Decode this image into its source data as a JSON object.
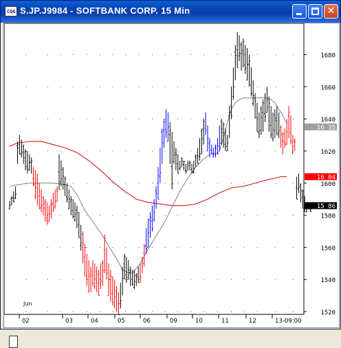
{
  "window": {
    "title": "S.JP.J9984 - SOFTBANK CORP. 15 Min",
    "icon_text": "CQG",
    "icon": "cqg-app-icon",
    "minimize_icon": "minimize-icon",
    "maximize_icon": "maximize-icon",
    "close_icon": "close-icon",
    "close_glyph": "✕"
  },
  "chart_data": {
    "type": "ohlc-bar",
    "month_label": "Jun",
    "x_tick_labels": [
      "02",
      "03",
      "04",
      "05",
      "06",
      "09",
      "10",
      "11",
      "12",
      "13-09:00"
    ],
    "ylim": [
      1516,
      1696
    ],
    "y_ticks": [
      1520,
      1540,
      1560,
      1580,
      1600,
      1620,
      1640,
      1660,
      1680
    ],
    "price_labels": [
      {
        "value": 1635,
        "text": "16 35",
        "color": "#a0a0a0"
      },
      {
        "value": 1604,
        "text": "16 04",
        "color": "#ff0000"
      },
      {
        "value": 1586,
        "text": "15 86",
        "color": "#000000"
      }
    ],
    "grid": "dotted",
    "colors": {
      "up": "#0000ff",
      "down": "#ff0000",
      "neutral": "#000000",
      "fast_ma": "#808080",
      "slow_ma": "#cc0000"
    },
    "bar_color_runs": [
      {
        "from": 0,
        "to": 11,
        "color": "#000000"
      },
      {
        "from": 12,
        "to": 24,
        "color": "#ff0000"
      },
      {
        "from": 25,
        "to": 36,
        "color": "#000000"
      },
      {
        "from": 37,
        "to": 55,
        "color": "#ff0000"
      },
      {
        "from": 56,
        "to": 65,
        "color": "#000000"
      },
      {
        "from": 66,
        "to": 68,
        "color": "#ff0000"
      },
      {
        "from": 69,
        "to": 80,
        "color": "#0000ff"
      },
      {
        "from": 81,
        "to": 98,
        "color": "#000000"
      },
      {
        "from": 99,
        "to": 106,
        "color": "#0000ff"
      },
      {
        "from": 107,
        "to": 136,
        "color": "#000000"
      },
      {
        "from": 137,
        "to": 144,
        "color": "#ff0000"
      }
    ],
    "bars": [
      [
        1589,
        1584
      ],
      [
        1592,
        1586
      ],
      [
        1595,
        1588
      ],
      [
        1598,
        1590
      ],
      [
        1626,
        1612
      ],
      [
        1630,
        1618
      ],
      [
        1627,
        1616
      ],
      [
        1624,
        1612
      ],
      [
        1621,
        1608
      ],
      [
        1620,
        1606
      ],
      [
        1618,
        1608
      ],
      [
        1616,
        1606
      ],
      [
        1610,
        1598
      ],
      [
        1608,
        1590
      ],
      [
        1606,
        1586
      ],
      [
        1600,
        1584
      ],
      [
        1596,
        1582
      ],
      [
        1592,
        1580
      ],
      [
        1590,
        1576
      ],
      [
        1588,
        1574
      ],
      [
        1586,
        1576
      ],
      [
        1590,
        1578
      ],
      [
        1594,
        1582
      ],
      [
        1596,
        1584
      ],
      [
        1598,
        1588
      ],
      [
        1618,
        1596
      ],
      [
        1614,
        1598
      ],
      [
        1610,
        1596
      ],
      [
        1604,
        1592
      ],
      [
        1600,
        1588
      ],
      [
        1596,
        1584
      ],
      [
        1592,
        1580
      ],
      [
        1590,
        1578
      ],
      [
        1588,
        1576
      ],
      [
        1586,
        1572
      ],
      [
        1582,
        1566
      ],
      [
        1574,
        1558
      ],
      [
        1570,
        1550
      ],
      [
        1562,
        1542
      ],
      [
        1556,
        1536
      ],
      [
        1552,
        1532
      ],
      [
        1548,
        1532
      ],
      [
        1552,
        1536
      ],
      [
        1550,
        1534
      ],
      [
        1548,
        1532
      ],
      [
        1546,
        1530
      ],
      [
        1550,
        1534
      ],
      [
        1552,
        1536
      ],
      [
        1568,
        1544
      ],
      [
        1560,
        1540
      ],
      [
        1550,
        1530
      ],
      [
        1546,
        1526
      ],
      [
        1542,
        1524
      ],
      [
        1540,
        1522
      ],
      [
        1536,
        1520
      ],
      [
        1532,
        1518
      ],
      [
        1538,
        1522
      ],
      [
        1548,
        1530
      ],
      [
        1556,
        1540
      ],
      [
        1554,
        1538
      ],
      [
        1552,
        1540
      ],
      [
        1548,
        1536
      ],
      [
        1546,
        1536
      ],
      [
        1546,
        1534
      ],
      [
        1544,
        1536
      ],
      [
        1548,
        1538
      ],
      [
        1550,
        1538
      ],
      [
        1554,
        1544
      ],
      [
        1562,
        1548
      ],
      [
        1572,
        1556
      ],
      [
        1578,
        1560
      ],
      [
        1582,
        1566
      ],
      [
        1586,
        1570
      ],
      [
        1590,
        1576
      ],
      [
        1598,
        1584
      ],
      [
        1610,
        1590
      ],
      [
        1622,
        1600
      ],
      [
        1634,
        1612
      ],
      [
        1640,
        1622
      ],
      [
        1646,
        1628
      ],
      [
        1644,
        1626
      ],
      [
        1638,
        1612
      ],
      [
        1632,
        1596
      ],
      [
        1626,
        1612
      ],
      [
        1622,
        1608
      ],
      [
        1618,
        1606
      ],
      [
        1614,
        1608
      ],
      [
        1616,
        1610
      ],
      [
        1614,
        1608
      ],
      [
        1612,
        1606
      ],
      [
        1614,
        1608
      ],
      [
        1614,
        1608
      ],
      [
        1612,
        1606
      ],
      [
        1614,
        1606
      ],
      [
        1618,
        1610
      ],
      [
        1622,
        1612
      ],
      [
        1628,
        1614
      ],
      [
        1634,
        1618
      ],
      [
        1640,
        1624
      ],
      [
        1644,
        1630
      ],
      [
        1636,
        1620
      ],
      [
        1628,
        1616
      ],
      [
        1624,
        1618
      ],
      [
        1622,
        1616
      ],
      [
        1624,
        1616
      ],
      [
        1628,
        1618
      ],
      [
        1636,
        1620
      ],
      [
        1640,
        1624
      ],
      [
        1638,
        1622
      ],
      [
        1634,
        1620
      ],
      [
        1630,
        1620
      ],
      [
        1648,
        1628
      ],
      [
        1660,
        1640
      ],
      [
        1672,
        1652
      ],
      [
        1686,
        1664
      ],
      [
        1694,
        1672
      ],
      [
        1692,
        1676
      ],
      [
        1688,
        1670
      ],
      [
        1690,
        1672
      ],
      [
        1686,
        1668
      ],
      [
        1684,
        1664
      ],
      [
        1680,
        1660
      ],
      [
        1672,
        1654
      ],
      [
        1664,
        1648
      ],
      [
        1656,
        1640
      ],
      [
        1650,
        1632
      ],
      [
        1644,
        1628
      ],
      [
        1648,
        1630
      ],
      [
        1652,
        1632
      ],
      [
        1656,
        1638
      ],
      [
        1660,
        1644
      ],
      [
        1654,
        1632
      ],
      [
        1648,
        1628
      ],
      [
        1644,
        1626
      ],
      [
        1646,
        1628
      ],
      [
        1648,
        1630
      ],
      [
        1644,
        1628
      ],
      [
        1636,
        1622
      ],
      [
        1632,
        1618
      ],
      [
        1634,
        1622
      ],
      [
        1640,
        1624
      ],
      [
        1648,
        1628
      ],
      [
        1642,
        1624
      ],
      [
        1630,
        1618
      ],
      [
        1628,
        1620
      ],
      [
        1604,
        1590
      ],
      [
        1606,
        1594
      ],
      [
        1600,
        1588
      ],
      [
        1596,
        1584
      ],
      [
        1592,
        1582
      ],
      [
        1586,
        1582
      ],
      [
        1588,
        1584
      ],
      [
        1586,
        1582
      ]
    ],
    "fast_ma": [
      [
        0,
        1598
      ],
      [
        4,
        1599
      ],
      [
        10,
        1600
      ],
      [
        16,
        1600
      ],
      [
        22,
        1600
      ],
      [
        28,
        1599
      ],
      [
        31,
        1598
      ],
      [
        34,
        1593
      ],
      [
        38,
        1583
      ],
      [
        42,
        1576
      ],
      [
        46,
        1569
      ],
      [
        50,
        1561
      ],
      [
        54,
        1553
      ],
      [
        57,
        1546
      ],
      [
        60,
        1544
      ],
      [
        62,
        1544
      ],
      [
        66,
        1550
      ],
      [
        70,
        1559
      ],
      [
        74,
        1567
      ],
      [
        78,
        1575
      ],
      [
        82,
        1585
      ],
      [
        86,
        1595
      ],
      [
        90,
        1603
      ],
      [
        94,
        1610
      ],
      [
        98,
        1615
      ],
      [
        100,
        1617
      ],
      [
        102,
        1618
      ],
      [
        104,
        1618
      ],
      [
        106,
        1620
      ],
      [
        108,
        1628
      ],
      [
        110,
        1638
      ],
      [
        112,
        1646
      ],
      [
        114,
        1650
      ],
      [
        116,
        1652
      ],
      [
        118,
        1653
      ],
      [
        122,
        1653
      ],
      [
        126,
        1653
      ],
      [
        130,
        1653
      ],
      [
        132,
        1652
      ],
      [
        134,
        1650
      ],
      [
        136,
        1646
      ],
      [
        138,
        1642
      ],
      [
        140,
        1637
      ]
    ],
    "slow_ma": [
      [
        0,
        1623
      ],
      [
        4,
        1625
      ],
      [
        10,
        1626
      ],
      [
        16,
        1626
      ],
      [
        22,
        1624
      ],
      [
        28,
        1622
      ],
      [
        34,
        1619
      ],
      [
        40,
        1614
      ],
      [
        46,
        1608
      ],
      [
        52,
        1601
      ],
      [
        58,
        1595
      ],
      [
        64,
        1590
      ],
      [
        70,
        1588
      ],
      [
        76,
        1587
      ],
      [
        82,
        1586
      ],
      [
        88,
        1586
      ],
      [
        94,
        1587
      ],
      [
        100,
        1590
      ],
      [
        106,
        1594
      ],
      [
        112,
        1597
      ],
      [
        118,
        1598
      ],
      [
        124,
        1600
      ],
      [
        130,
        1602
      ],
      [
        134,
        1603
      ],
      [
        137,
        1604
      ],
      [
        140,
        1604
      ]
    ]
  }
}
